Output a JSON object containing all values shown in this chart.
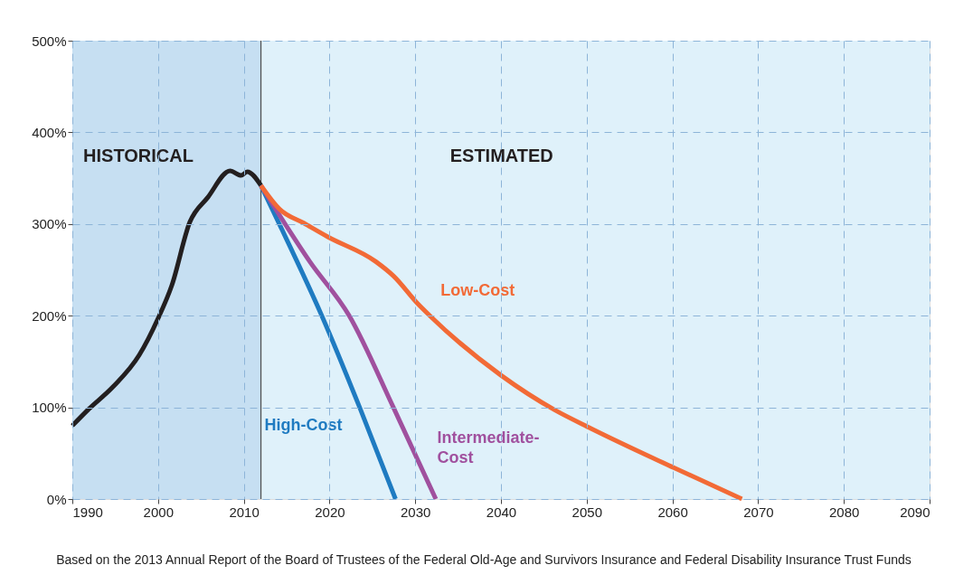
{
  "chart_data": {
    "type": "line",
    "xlim": [
      1990,
      2090
    ],
    "xticks": [
      1990,
      2000,
      2010,
      2020,
      2030,
      2040,
      2050,
      2060,
      2070,
      2080,
      2090
    ],
    "ylim": [
      0,
      500
    ],
    "yticks": [
      {
        "value": 0,
        "label": "0%"
      },
      {
        "value": 100,
        "label": "100%"
      },
      {
        "value": 200,
        "label": "200%"
      },
      {
        "value": 300,
        "label": "300%"
      },
      {
        "value": 400,
        "label": "400%"
      },
      {
        "value": 500,
        "label": "500%"
      }
    ],
    "grid": true,
    "line_style": "solid",
    "marker": "none",
    "series": [
      {
        "color": "#231f20",
        "x": [
          1990,
          1991.9,
          1994.7,
          1997.8,
          2000,
          2001.6,
          2003.7,
          2005.8,
          2008.4,
          2009.7,
          2010.4,
          2012
        ],
        "values": [
          80,
          98,
          122,
          157,
          197,
          233,
          302,
          329,
          358,
          353,
          357,
          342
        ]
      },
      {
        "name": "High-Cost",
        "color": "#1f7bc1",
        "x": [
          2012,
          2014.2,
          2019.1,
          2023.6,
          2027.7
        ],
        "values": [
          342,
          299,
          200,
          98,
          0
        ]
      },
      {
        "name": "Intermediate-Cost",
        "color": "#a0509e",
        "x": [
          2012,
          2017.7,
          2022.3,
          2027.5,
          2032.4
        ],
        "values": [
          342,
          259,
          200,
          99,
          0
        ]
      },
      {
        "name": "Low-Cost",
        "color": "#f26a36",
        "x": [
          2012,
          2014.2,
          2017,
          2019.8,
          2025.4,
          2027.5,
          2030.3,
          2031.7,
          2040,
          2046.3,
          2050.5,
          2060.2,
          2068.1
        ],
        "values": [
          342,
          316,
          301,
          286,
          259,
          243,
          213,
          200,
          135,
          97,
          77,
          34,
          0
        ]
      }
    ],
    "bands": [
      {
        "axis": "x",
        "from": 1990,
        "to": 2012,
        "label": "HISTORICAL",
        "color": "#c6dff2"
      },
      {
        "axis": "x",
        "from": 2012,
        "to": 2090,
        "label": "ESTIMATED",
        "color": "#dff1fa"
      }
    ],
    "ref_lines": [
      {
        "axis": "x",
        "value": 2012,
        "color": "#4d4d4d"
      }
    ],
    "annotations": [
      "Based on the 2013 Annual Report of the Board of Trustees of the Federal Old-Age and Survivors Insurance and Federal Disability Insurance Trust Funds"
    ]
  }
}
